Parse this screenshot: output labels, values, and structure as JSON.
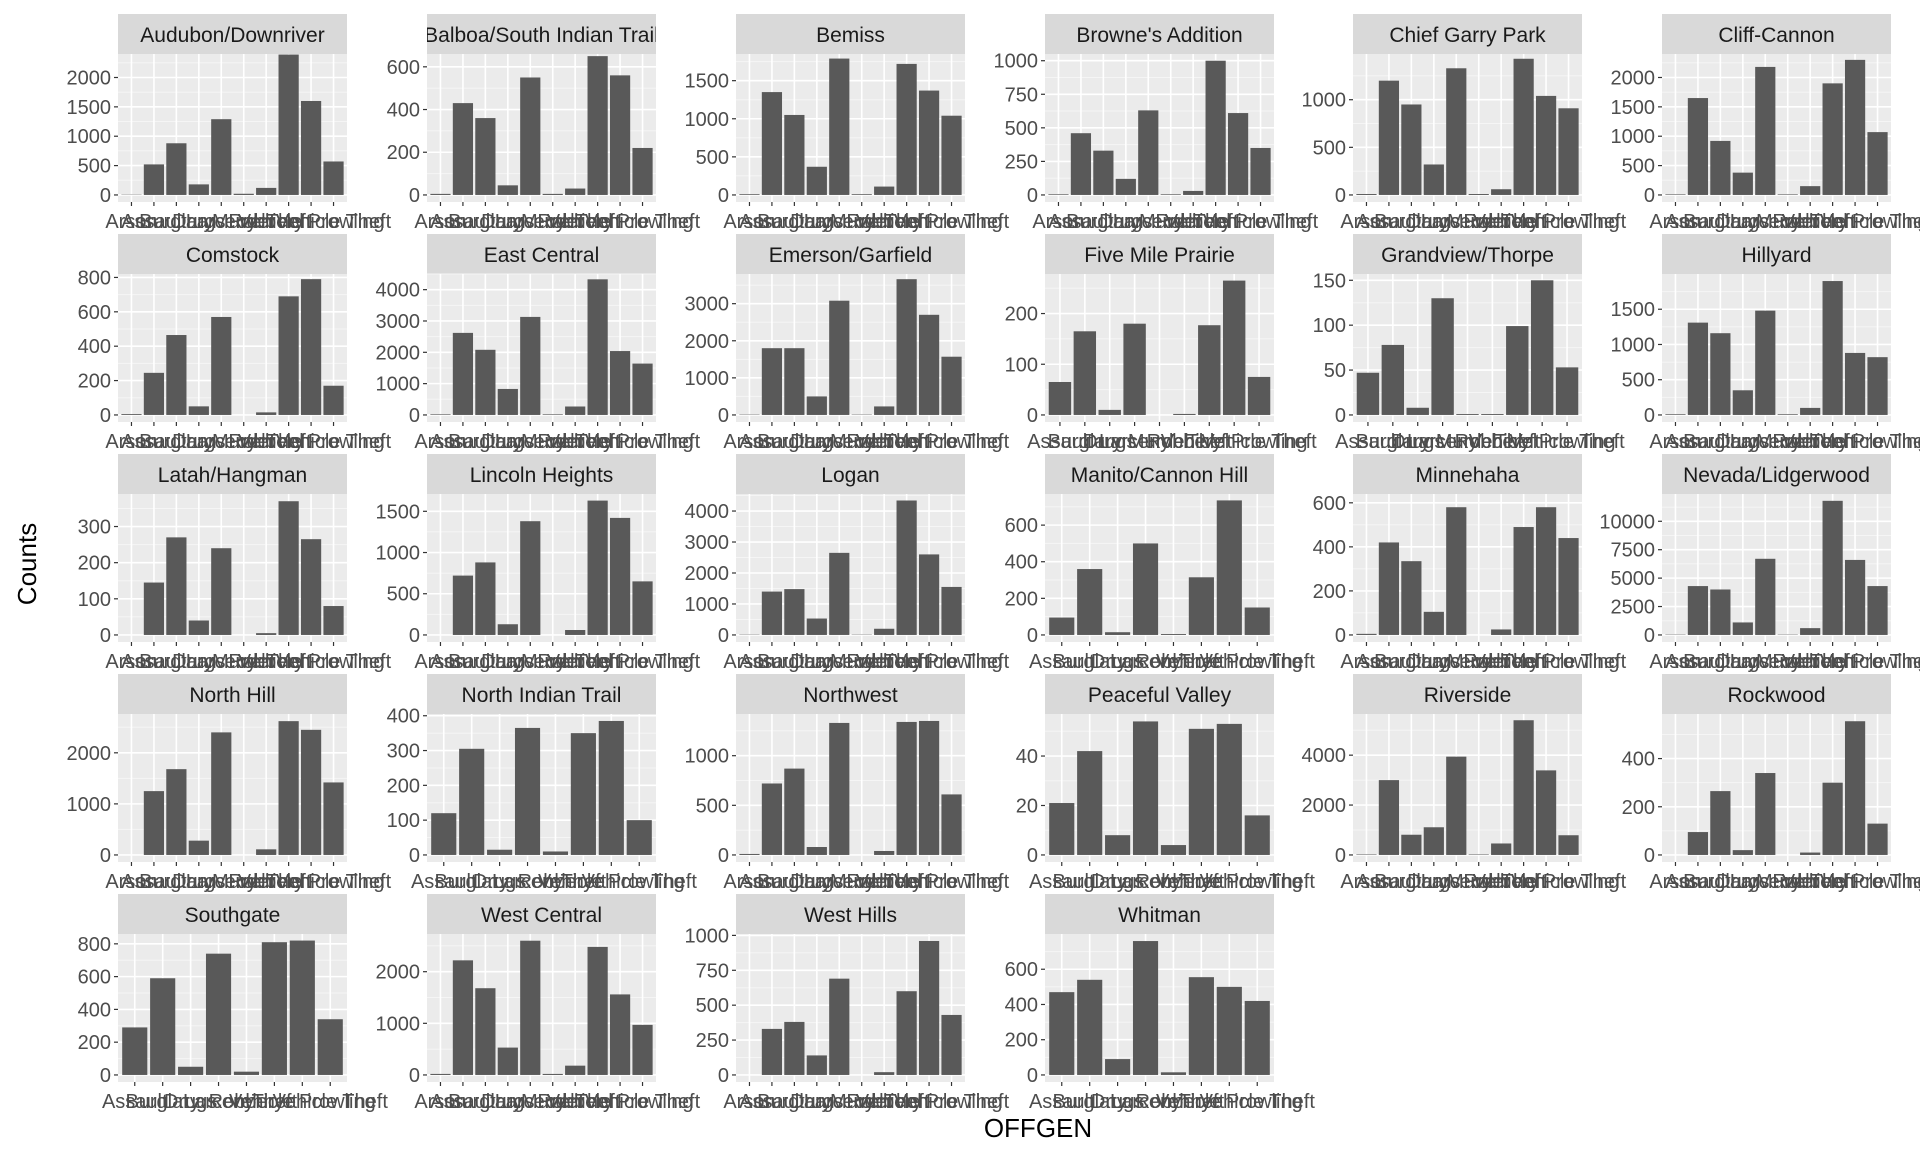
{
  "figure": {
    "xlabel": "OFFGEN",
    "ylabel": "Counts"
  },
  "colors": {
    "bar": "#595959",
    "panel_bg": "#EBEBEB",
    "strip_bg": "#D9D9D9",
    "grid_major": "#FFFFFF",
    "grid_minor": "#F5F5F5",
    "tick_text": "#4D4D4D",
    "strip_text": "#1A1A1A",
    "axis_title": "#000000"
  },
  "chart_data": {
    "type": "bar",
    "facet": "neighborhood",
    "categories": [
      "Arson",
      "Assault",
      "Burglary",
      "Drugs",
      "Larceny",
      "Murder",
      "Robbery",
      "Theft",
      "Vehicle Prowling",
      "Vehicle Theft"
    ],
    "category_labels": [
      "Arson",
      "Assault",
      "Burglary",
      "Drugs",
      "Larceny",
      "Murder",
      "Robbery",
      "Theft",
      "Vehicle Prowling",
      "Vehicle Theft"
    ],
    "panels": [
      {
        "name": "Audubon/Downriver",
        "values": [
          5,
          520,
          880,
          180,
          1290,
          20,
          120,
          2390,
          1600,
          570
        ],
        "yticks": [
          0,
          500,
          1000,
          1500,
          2000
        ],
        "ymax": 2400
      },
      {
        "name": "Balboa/South Indian Trail",
        "values": [
          5,
          430,
          360,
          45,
          550,
          5,
          30,
          650,
          560,
          220
        ],
        "yticks": [
          0,
          200,
          400,
          600
        ],
        "ymax": 660
      },
      {
        "name": "Bemiss",
        "values": [
          10,
          1350,
          1050,
          370,
          1790,
          10,
          110,
          1720,
          1370,
          1040
        ],
        "yticks": [
          0,
          500,
          1000,
          1500
        ],
        "ymax": 1850
      },
      {
        "name": "Browne's Addition",
        "values": [
          5,
          460,
          330,
          120,
          630,
          5,
          30,
          1000,
          610,
          350
        ],
        "yticks": [
          0,
          250,
          500,
          750,
          1000
        ],
        "ymax": 1050
      },
      {
        "name": "Chief Garry Park",
        "values": [
          10,
          1200,
          950,
          320,
          1330,
          10,
          60,
          1430,
          1040,
          910
        ],
        "yticks": [
          0,
          500,
          1000
        ],
        "ymax": 1480
      },
      {
        "name": "Cliff-Cannon",
        "values": [
          10,
          1650,
          920,
          380,
          2180,
          10,
          150,
          1900,
          2300,
          1070
        ],
        "yticks": [
          0,
          500,
          1000,
          1500,
          2000
        ],
        "ymax": 2400
      },
      {
        "name": "Comstock",
        "values": [
          5,
          245,
          465,
          50,
          570,
          0,
          15,
          690,
          790,
          170
        ],
        "yticks": [
          0,
          200,
          400,
          600,
          800
        ],
        "ymax": 820
      },
      {
        "name": "East Central",
        "values": [
          20,
          2620,
          2080,
          830,
          3130,
          20,
          270,
          4330,
          2040,
          1640
        ],
        "yticks": [
          0,
          1000,
          2000,
          3000,
          4000
        ],
        "ymax": 4500
      },
      {
        "name": "Emerson/Garfield",
        "values": [
          10,
          1800,
          1800,
          500,
          3080,
          10,
          230,
          3660,
          2700,
          1570
        ],
        "yticks": [
          0,
          1000,
          2000,
          3000
        ],
        "ymax": 3800
      },
      {
        "name": "Five Mile Prairie",
        "values": [
          65,
          165,
          10,
          180,
          0,
          2,
          177,
          265,
          75
        ],
        "yticks": [
          0,
          100,
          200
        ],
        "ymax": 278,
        "categories": [
          "Assault",
          "Burglary",
          "Drugs",
          "Larceny",
          "Murder",
          "Robbery",
          "Theft",
          "Vehicle Prowling",
          "Vehicle Theft"
        ]
      },
      {
        "name": "Grandview/Thorpe",
        "values": [
          47,
          78,
          8,
          130,
          1,
          1,
          99,
          150,
          53
        ],
        "yticks": [
          0,
          50,
          100,
          150
        ],
        "ymax": 157,
        "categories": [
          "Assault",
          "Burglary",
          "Drugs",
          "Larceny",
          "Murder",
          "Robbery",
          "Theft",
          "Vehicle Prowling",
          "Vehicle Theft"
        ]
      },
      {
        "name": "Hillyard",
        "values": [
          10,
          1310,
          1160,
          350,
          1480,
          10,
          100,
          1900,
          880,
          820
        ],
        "yticks": [
          0,
          500,
          1000,
          1500
        ],
        "ymax": 2000
      },
      {
        "name": "Latah/Hangman",
        "values": [
          0,
          145,
          270,
          40,
          240,
          0,
          5,
          370,
          265,
          80
        ],
        "yticks": [
          0,
          100,
          200,
          300
        ],
        "ymax": 390
      },
      {
        "name": "Lincoln Heights",
        "values": [
          0,
          720,
          880,
          130,
          1380,
          0,
          60,
          1630,
          1420,
          650
        ],
        "yticks": [
          0,
          500,
          1000,
          1500
        ],
        "ymax": 1710
      },
      {
        "name": "Logan",
        "values": [
          10,
          1400,
          1480,
          530,
          2650,
          10,
          200,
          4340,
          2600,
          1550
        ],
        "yticks": [
          0,
          1000,
          2000,
          3000,
          4000
        ],
        "ymax": 4550
      },
      {
        "name": "Manito/Cannon Hill",
        "values": [
          95,
          360,
          15,
          500,
          5,
          315,
          735,
          150
        ],
        "yticks": [
          0,
          200,
          400,
          600
        ],
        "ymax": 770,
        "categories": [
          "Assault",
          "Burglary",
          "Drugs",
          "Larceny",
          "Robbery",
          "Theft",
          "Vehicle Prowling",
          "Vehicle Theft"
        ]
      },
      {
        "name": "Minnehaha",
        "values": [
          5,
          420,
          335,
          105,
          580,
          0,
          25,
          490,
          580,
          440
        ],
        "yticks": [
          0,
          200,
          400,
          600
        ],
        "ymax": 640
      },
      {
        "name": "Nevada/Lidgerwood",
        "values": [
          30,
          4300,
          4000,
          1100,
          6700,
          30,
          600,
          11800,
          6600,
          4300
        ],
        "yticks": [
          0,
          2500,
          5000,
          7500,
          10000
        ],
        "ymax": 12400
      },
      {
        "name": "North Hill",
        "values": [
          0,
          1250,
          1680,
          280,
          2400,
          0,
          110,
          2620,
          2450,
          1420
        ],
        "yticks": [
          0,
          1000,
          2000
        ],
        "ymax": 2760
      },
      {
        "name": "North Indian Trail",
        "values": [
          120,
          305,
          15,
          365,
          10,
          350,
          385,
          100
        ],
        "yticks": [
          0,
          100,
          200,
          300,
          400
        ],
        "ymax": 405,
        "categories": [
          "Assault",
          "Burglary",
          "Drugs",
          "Larceny",
          "Robbery",
          "Theft",
          "Vehicle Prowling",
          "Vehicle Theft"
        ]
      },
      {
        "name": "Northwest",
        "values": [
          10,
          720,
          870,
          80,
          1330,
          0,
          40,
          1340,
          1350,
          610
        ],
        "yticks": [
          0,
          500,
          1000
        ],
        "ymax": 1420
      },
      {
        "name": "Peaceful Valley",
        "values": [
          21,
          42,
          8,
          54,
          4,
          51,
          53,
          16
        ],
        "yticks": [
          0,
          20,
          40
        ],
        "ymax": 57,
        "categories": [
          "Assault",
          "Burglary",
          "Drugs",
          "Larceny",
          "Robbery",
          "Theft",
          "Vehicle Prowling",
          "Vehicle Theft"
        ]
      },
      {
        "name": "Riverside",
        "values": [
          20,
          3000,
          810,
          1110,
          3940,
          20,
          460,
          5400,
          3390,
          790
        ],
        "yticks": [
          0,
          2000,
          4000
        ],
        "ymax": 5650
      },
      {
        "name": "Rockwood",
        "values": [
          0,
          95,
          265,
          20,
          340,
          0,
          10,
          300,
          555,
          130
        ],
        "yticks": [
          0,
          200,
          400
        ],
        "ymax": 585
      },
      {
        "name": "Southgate",
        "values": [
          290,
          590,
          50,
          740,
          20,
          810,
          820,
          340
        ],
        "yticks": [
          0,
          200,
          400,
          600,
          800
        ],
        "ymax": 860,
        "categories": [
          "Assault",
          "Burglary",
          "Drugs",
          "Larceny",
          "Robbery",
          "Theft",
          "Vehicle Prowling",
          "Vehicle Theft"
        ]
      },
      {
        "name": "West Central",
        "values": [
          20,
          2220,
          1680,
          530,
          2600,
          20,
          180,
          2480,
          1560,
          970
        ],
        "yticks": [
          0,
          1000,
          2000
        ],
        "ymax": 2730
      },
      {
        "name": "West Hills",
        "values": [
          0,
          330,
          380,
          140,
          690,
          0,
          20,
          600,
          960,
          430
        ],
        "yticks": [
          0,
          250,
          500,
          750,
          1000
        ],
        "ymax": 1010
      },
      {
        "name": "Whitman",
        "values": [
          470,
          540,
          90,
          760,
          15,
          555,
          500,
          420
        ],
        "yticks": [
          0,
          200,
          400,
          600
        ],
        "ymax": 800,
        "categories": [
          "Assault",
          "Burglary",
          "Drugs",
          "Larceny",
          "Robbery",
          "Theft",
          "Vehicle Prowling",
          "Vehicle Theft"
        ]
      }
    ],
    "legend": "none",
    "grid": true
  }
}
